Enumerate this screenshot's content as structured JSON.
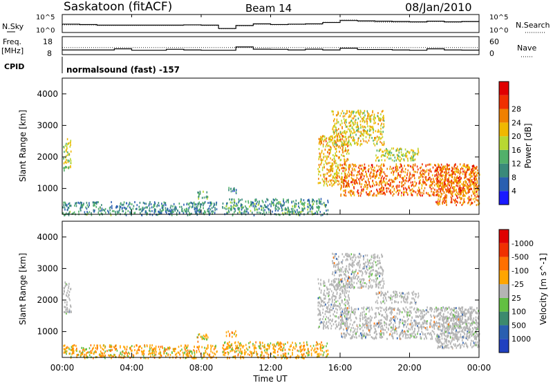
{
  "header": {
    "station": "Saskatoon (fitACF)",
    "beam": "Beam 14",
    "date": "08/Jan/2010"
  },
  "labels": {
    "nsky": "N.Sky",
    "nsearch": "N.Search",
    "freq": "Freq.",
    "freq_unit": "[MHz]",
    "nave": "Nave",
    "cpid": "CPID",
    "cpid_value": "normalsound (fast) -157",
    "xlabel": "Time UT"
  },
  "colors": {
    "power_scale": [
      "#1a1aff",
      "#2a5fb0",
      "#3a8a7a",
      "#52b06a",
      "#b8d832",
      "#f0b800",
      "#f08000",
      "#f03000",
      "#e00000"
    ],
    "velocity_scale": [
      "#2040c0",
      "#2a5fb0",
      "#3c8a6e",
      "#62c042",
      "#b4b4b4",
      "#ffa500",
      "#ff7000",
      "#f03000",
      "#e00000"
    ],
    "ground_scatter": "#b4b4b4"
  },
  "chart_data": [
    {
      "id": "nsky-nsearch",
      "type": "line",
      "left_ticks": [
        "10^5",
        "10^0"
      ],
      "right_ticks": [
        "10^5",
        "10^0"
      ],
      "x": [
        0,
        1,
        2,
        3,
        4,
        5,
        6,
        7,
        8,
        9,
        10,
        11,
        12,
        13,
        14,
        15,
        16,
        17,
        18,
        19,
        20,
        21,
        22,
        23,
        24
      ],
      "series": [
        {
          "name": "N.Sky",
          "values": [
            2.3,
            2.2,
            2.0,
            2.0,
            2.0,
            2.0,
            2.0,
            2.1,
            2.0,
            1.0,
            1.9,
            2.4,
            2.2,
            2.3,
            2.4,
            2.8,
            3.4,
            3.3,
            3.2,
            3.1,
            3.0,
            3.2,
            3.0,
            3.1,
            3.0
          ]
        },
        {
          "name": "N.Search",
          "values": [
            2.1,
            2.0,
            1.9,
            1.9,
            1.9,
            1.9,
            1.9,
            2.0,
            1.9,
            0.9,
            1.8,
            2.3,
            2.1,
            2.2,
            2.3,
            2.9,
            3.6,
            3.0,
            2.9,
            2.9,
            2.9,
            3.1,
            2.9,
            3.0,
            2.9
          ]
        }
      ]
    },
    {
      "id": "freq-nave",
      "type": "line",
      "left_ticks": [
        "18",
        "8"
      ],
      "right_ticks": [
        "60",
        "0"
      ],
      "ylim_freq": [
        8,
        18
      ],
      "ylim_nave": [
        0,
        60
      ],
      "x": [
        0,
        1,
        2,
        3,
        4,
        5,
        6,
        7,
        8,
        9,
        10,
        11,
        12,
        13,
        14,
        15,
        16,
        17,
        18,
        19,
        20,
        21,
        22,
        23,
        24
      ],
      "series": [
        {
          "name": "Freq",
          "values": [
            10.5,
            10.5,
            10.5,
            11.2,
            10.3,
            10.3,
            10.9,
            10.5,
            10.3,
            10.3,
            12.4,
            11.0,
            10.9,
            10.5,
            11.0,
            10.5,
            11.6,
            10.8,
            10.8,
            10.5,
            10.3,
            11.2,
            10.5,
            10.4,
            10.3
          ]
        },
        {
          "name": "Nave",
          "values": [
            24,
            24,
            24,
            24,
            24,
            24,
            24,
            24,
            24,
            24,
            24,
            24,
            24,
            24,
            24,
            24,
            24,
            24,
            24,
            24,
            24,
            24,
            24,
            24,
            24
          ]
        }
      ]
    },
    {
      "id": "power",
      "type": "heatmap",
      "ylabel": "Slant Range [km]",
      "yticks": [
        1000,
        2000,
        3000,
        4000
      ],
      "ylim": [
        180,
        4500
      ],
      "colorbar_label": "Power [dB]",
      "colorbar_ticks": [
        "4",
        "8",
        "12",
        "16",
        "20",
        "24",
        "28"
      ],
      "patches": [
        {
          "t0": 0.05,
          "t1": 0.5,
          "r0": 1600,
          "r1": 2600,
          "v": 16
        },
        {
          "t0": 0.0,
          "t1": 8.9,
          "r0": 180,
          "r1": 600,
          "v": 9
        },
        {
          "t0": 7.7,
          "t1": 8.4,
          "r0": 700,
          "r1": 950,
          "v": 12
        },
        {
          "t0": 9.4,
          "t1": 10.0,
          "r0": 850,
          "r1": 1050,
          "v": 8
        },
        {
          "t0": 9.2,
          "t1": 15.3,
          "r0": 180,
          "r1": 700,
          "v": 10
        },
        {
          "t0": 14.7,
          "t1": 16.5,
          "r0": 1100,
          "r1": 2700,
          "v": 20
        },
        {
          "t0": 15.5,
          "t1": 18.5,
          "r0": 2400,
          "r1": 3500,
          "v": 18
        },
        {
          "t0": 16.0,
          "t1": 23.9,
          "r0": 800,
          "r1": 1800,
          "v": 24
        },
        {
          "t0": 18.0,
          "t1": 20.5,
          "r0": 1900,
          "r1": 2300,
          "v": 16
        },
        {
          "t0": 21.5,
          "t1": 24.0,
          "r0": 500,
          "r1": 1800,
          "v": 24
        }
      ]
    },
    {
      "id": "velocity",
      "type": "heatmap",
      "ylabel": "Slant Range [km]",
      "yticks": [
        1000,
        2000,
        3000,
        4000
      ],
      "ylim": [
        180,
        4500
      ],
      "colorbar_label": "Velocity [m s^-1]",
      "colorbar_ticks": [
        "1000",
        "500",
        "100",
        "25",
        "-25",
        "-100",
        "-500",
        "-1000"
      ],
      "xticks": [
        "00:00",
        "04:00",
        "08:00",
        "12:00",
        "16:00",
        "20:00",
        "00:00"
      ],
      "patches": [
        {
          "t0": 0.05,
          "t1": 0.5,
          "r0": 1600,
          "r1": 2600,
          "v": 0
        },
        {
          "t0": 0.0,
          "t1": 8.9,
          "r0": 180,
          "r1": 600,
          "v": -60
        },
        {
          "t0": 7.7,
          "t1": 8.4,
          "r0": 700,
          "r1": 950,
          "v": -150
        },
        {
          "t0": 9.4,
          "t1": 10.0,
          "r0": 850,
          "r1": 1050,
          "v": -150
        },
        {
          "t0": 9.2,
          "t1": 15.3,
          "r0": 180,
          "r1": 700,
          "v": -60
        },
        {
          "t0": 14.7,
          "t1": 16.5,
          "r0": 1100,
          "r1": 2700,
          "v": 0
        },
        {
          "t0": 15.5,
          "t1": 18.5,
          "r0": 2400,
          "r1": 3500,
          "v": 0
        },
        {
          "t0": 16.0,
          "t1": 23.9,
          "r0": 800,
          "r1": 1800,
          "v": 0
        },
        {
          "t0": 18.0,
          "t1": 20.5,
          "r0": 1900,
          "r1": 2300,
          "v": 0
        },
        {
          "t0": 21.5,
          "t1": 24.0,
          "r0": 500,
          "r1": 1800,
          "v": 0
        }
      ]
    }
  ]
}
